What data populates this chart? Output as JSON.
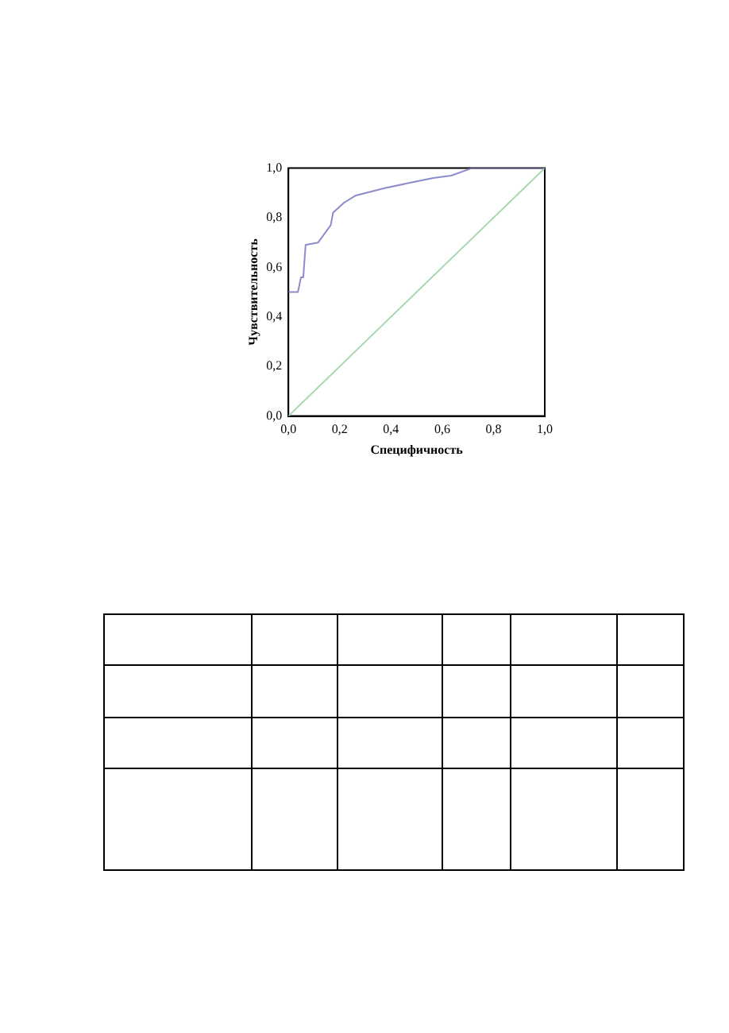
{
  "chart_data": {
    "type": "line",
    "xlabel": "Специфичность",
    "ylabel": "Чувствительность",
    "xlim": [
      0,
      1
    ],
    "ylim": [
      0,
      1
    ],
    "xticks": [
      {
        "value": 0,
        "label": "0,0"
      },
      {
        "value": 0.2,
        "label": "0,2"
      },
      {
        "value": 0.4,
        "label": "0,4"
      },
      {
        "value": 0.6,
        "label": "0,6"
      },
      {
        "value": 0.8,
        "label": "0,8"
      },
      {
        "value": 1,
        "label": "1,0"
      }
    ],
    "yticks": [
      {
        "value": 0,
        "label": "0,0"
      },
      {
        "value": 0.2,
        "label": "0,2"
      },
      {
        "value": 0.4,
        "label": "0,4"
      },
      {
        "value": 0.6,
        "label": "0,6"
      },
      {
        "value": 0.8,
        "label": "0,8"
      },
      {
        "value": 1,
        "label": "1,0"
      }
    ],
    "grid": false,
    "legend": false,
    "marker": "none",
    "series": [
      {
        "color": "#8c8ccc",
        "x": [
          0,
          0.037,
          0.049,
          0.058,
          0.067,
          0.116,
          0.165,
          0.174,
          0.216,
          0.263,
          0.379,
          0.47,
          0.565,
          0.635,
          0.716,
          1
        ],
        "values": [
          0.5,
          0.5,
          0.56,
          0.56,
          0.69,
          0.7,
          0.77,
          0.82,
          0.86,
          0.89,
          0.92,
          0.94,
          0.96,
          0.97,
          1,
          1
        ]
      },
      {
        "color": "#a8d8b0",
        "x": [
          0,
          1
        ],
        "values": [
          0,
          1
        ]
      }
    ]
  }
}
